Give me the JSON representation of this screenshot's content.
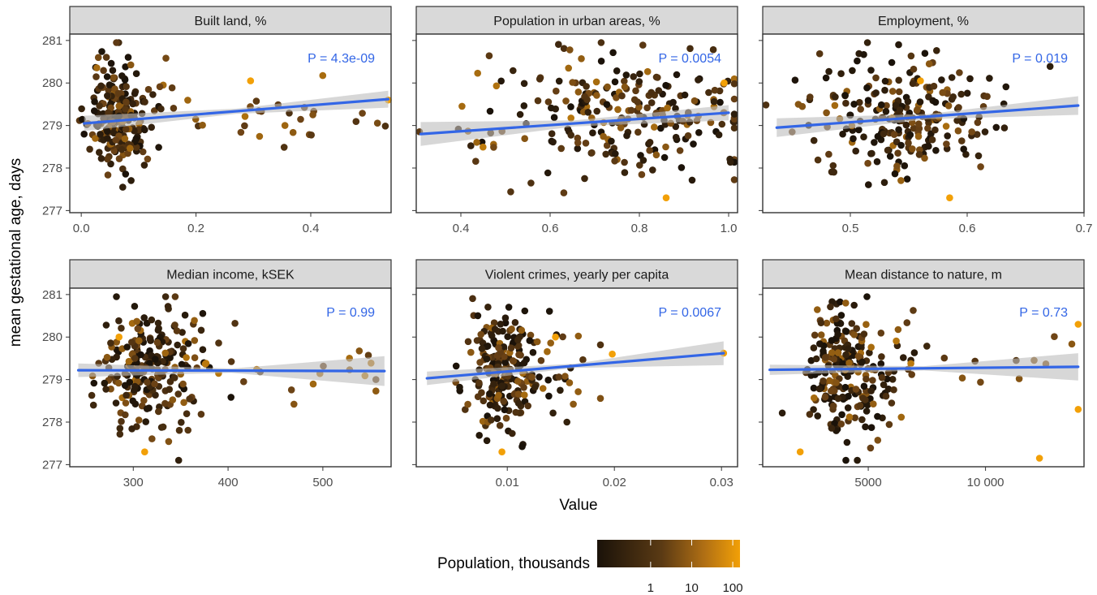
{
  "chart_data": {
    "type": "scatter",
    "y_label": "mean gestational age, days",
    "x_label": "Value",
    "y_ticks": [
      277,
      278,
      279,
      280,
      281
    ],
    "ylim": [
      276.95,
      281.15
    ],
    "colors": {
      "fit_line": "#3366e6",
      "ci_band": "#bdbdbd",
      "strip": "#d9d9d9",
      "pvalue": "#3366e6"
    },
    "legend": {
      "title": "Population, thousands",
      "tick_labels": [
        "1",
        "10",
        "100"
      ],
      "tick_values": [
        1,
        10,
        100
      ],
      "scale": "log10",
      "range": [
        0.05,
        150
      ],
      "color_low": "#1a1209",
      "color_high": "#f2a007"
    },
    "panels": [
      {
        "title": "Built land, %",
        "p_value": "P = 4.3e-09",
        "xlim": [
          -0.02,
          0.54
        ],
        "x_ticks": [
          0.0,
          0.2,
          0.4
        ],
        "x_tick_labels": [
          "0.0",
          "0.2",
          "0.4"
        ],
        "fit": {
          "x0": 0.005,
          "y0": 279.05,
          "x1": 0.535,
          "y1": 279.62
        },
        "ci": {
          "w0": 0.18,
          "wmid": 0.06,
          "w1": 0.2
        },
        "highlights": [
          [
            0.295,
            280.05
          ],
          [
            0.535,
            279.6
          ]
        ],
        "gen": {
          "seed": 11,
          "n": 210,
          "center": 0.045,
          "spread": 0.03,
          "skew": 1.3,
          "tail_n": 34,
          "tail_max": 0.53,
          "ycenter": 279.2,
          "yspread": 0.65
        }
      },
      {
        "title": "Population in urban areas, %",
        "p_value": "P = 0.0054",
        "xlim": [
          0.3,
          1.02
        ],
        "x_ticks": [
          0.4,
          0.6,
          0.8,
          1.0
        ],
        "x_tick_labels": [
          "0.4",
          "0.6",
          "0.8",
          "1.0"
        ],
        "fit": {
          "x0": 0.31,
          "y0": 278.8,
          "x1": 1.0,
          "y1": 279.3
        },
        "ci": {
          "w0": 0.28,
          "wmid": 0.07,
          "w1": 0.18
        },
        "highlights": [
          [
            0.99,
            280.0
          ],
          [
            0.86,
            277.3
          ]
        ],
        "gen": {
          "seed": 23,
          "n": 230,
          "center": 0.78,
          "spread": 0.14,
          "skew": 0.0,
          "tail_n": 10,
          "tail_max": 0.32,
          "ycenter": 279.2,
          "yspread": 0.7
        }
      },
      {
        "title": "Employment, %",
        "p_value": "P = 0.019",
        "xlim": [
          0.425,
          0.7
        ],
        "x_ticks": [
          0.5,
          0.6,
          0.7
        ],
        "x_tick_labels": [
          "0.5",
          "0.6",
          "0.7"
        ],
        "fit": {
          "x0": 0.437,
          "y0": 278.95,
          "x1": 0.695,
          "y1": 279.47
        },
        "ci": {
          "w0": 0.22,
          "wmid": 0.06,
          "w1": 0.22
        },
        "highlights": [
          [
            0.585,
            277.3
          ],
          [
            0.56,
            280.05
          ]
        ],
        "gen": {
          "seed": 37,
          "n": 230,
          "center": 0.55,
          "spread": 0.04,
          "skew": 0.0,
          "tail_n": 8,
          "tail_max": 0.44,
          "ycenter": 279.2,
          "yspread": 0.7
        }
      },
      {
        "title": "Median income, kSEK",
        "p_value": "P = 0.99",
        "xlim": [
          233,
          572
        ],
        "x_ticks": [
          300,
          400,
          500
        ],
        "x_tick_labels": [
          "300",
          "400",
          "500"
        ],
        "fit": {
          "x0": 242,
          "y0": 279.22,
          "x1": 565,
          "y1": 279.2
        },
        "ci": {
          "w0": 0.16,
          "wmid": 0.05,
          "w1": 0.35
        },
        "highlights": [
          [
            285,
            280.0
          ],
          [
            312,
            277.3
          ]
        ],
        "gen": {
          "seed": 41,
          "n": 230,
          "center": 300,
          "spread": 30,
          "skew": 1.2,
          "tail_n": 30,
          "tail_max": 565,
          "ycenter": 279.2,
          "yspread": 0.7
        }
      },
      {
        "title": "Violent crimes, yearly per capita",
        "p_value": "P = 0.0067",
        "xlim": [
          0.0015,
          0.0315
        ],
        "x_ticks": [
          0.01,
          0.02,
          0.03
        ],
        "x_tick_labels": [
          "0.01",
          "0.02",
          "0.03"
        ],
        "fit": {
          "x0": 0.0025,
          "y0": 279.03,
          "x1": 0.0302,
          "y1": 279.62
        },
        "ci": {
          "w0": 0.16,
          "wmid": 0.05,
          "w1": 0.28
        },
        "highlights": [
          [
            0.0302,
            279.62
          ],
          [
            0.0198,
            279.6
          ],
          [
            0.0145,
            280.0
          ],
          [
            0.0095,
            277.3
          ]
        ],
        "gen": {
          "seed": 53,
          "n": 230,
          "center": 0.0085,
          "spread": 0.003,
          "skew": 0.9,
          "tail_n": 12,
          "tail_max": 0.02,
          "ycenter": 279.2,
          "yspread": 0.7
        }
      },
      {
        "title": "Mean distance to nature, m",
        "p_value": "P = 0.73",
        "xlim": [
          500,
          14200
        ],
        "x_ticks": [
          5000,
          10000
        ],
        "x_tick_labels": [
          "5000",
          "10 000"
        ],
        "fit": {
          "x0": 800,
          "y0": 279.23,
          "x1": 13950,
          "y1": 279.3
        },
        "ci": {
          "w0": 0.12,
          "wmid": 0.05,
          "w1": 0.32
        },
        "highlights": [
          [
            2100,
            277.3
          ],
          [
            13950,
            278.3
          ],
          [
            13950,
            280.3
          ],
          [
            12300,
            277.15
          ]
        ],
        "gen": {
          "seed": 67,
          "n": 230,
          "center": 3500,
          "spread": 1600,
          "skew": 0.8,
          "tail_n": 22,
          "tail_max": 13900,
          "ycenter": 279.2,
          "yspread": 0.7
        }
      }
    ]
  }
}
